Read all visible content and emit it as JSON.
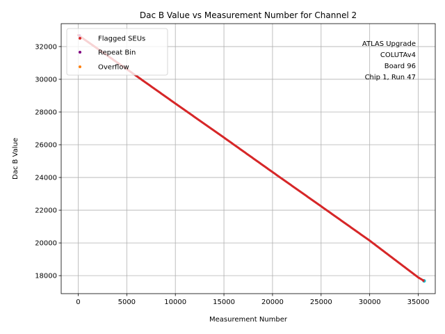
{
  "chart_data": {
    "type": "scatter",
    "title": "Dac B Value vs Measurement Number for Channel 2",
    "xlabel": "Measurement Number",
    "ylabel": "Dac B Value",
    "xlim": [
      -1750,
      36750
    ],
    "ylim": [
      16900,
      33400
    ],
    "xticks": [
      0,
      5000,
      10000,
      15000,
      20000,
      25000,
      30000,
      35000
    ],
    "yticks": [
      18000,
      20000,
      22000,
      24000,
      26000,
      28000,
      30000,
      32000
    ],
    "xtick_labels": [
      "0",
      "5000",
      "10000",
      "15000",
      "20000",
      "25000",
      "30000",
      "35000"
    ],
    "ytick_labels": [
      "18000",
      "20000",
      "22000",
      "24000",
      "26000",
      "28000",
      "30000",
      "32000"
    ],
    "grid": true,
    "legend_position": "top-left",
    "series": [
      {
        "name": "Flagged SEUs",
        "color": "#d62728",
        "points": [
          [
            0,
            32700
          ],
          [
            5000,
            30620
          ],
          [
            10000,
            28520
          ],
          [
            15000,
            26440
          ],
          [
            20000,
            24330
          ],
          [
            25000,
            22240
          ],
          [
            30000,
            20140
          ],
          [
            35000,
            17890
          ],
          [
            35600,
            17680
          ]
        ]
      },
      {
        "name": "Repeat Bin",
        "color": "#800080",
        "points": [
          [
            150,
            32680
          ]
        ]
      },
      {
        "name": "Overflow",
        "color": "#ff7f0e",
        "points": []
      }
    ],
    "background_series_color": "#17becf",
    "annotation": [
      "ATLAS Upgrade",
      "COLUTAv4",
      "Board 96",
      "Chip 1, Run 47"
    ]
  }
}
